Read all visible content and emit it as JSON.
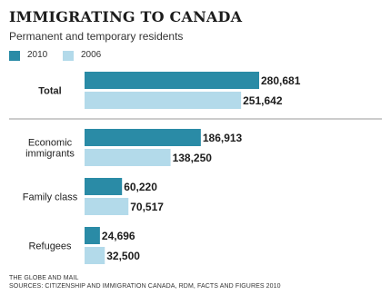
{
  "header": {
    "title": "IMMIGRATING TO CANADA",
    "subtitle": "Permanent and temporary residents"
  },
  "colors": {
    "series_2010": "#2a8ba6",
    "series_2006": "#b3daea",
    "divider": "#999999",
    "text": "#1c1c1c"
  },
  "chart_data": {
    "type": "bar",
    "orientation": "horizontal",
    "title": "IMMIGRATING TO CANADA",
    "subtitle": "Permanent and temporary residents",
    "categories": [
      "Total",
      "Economic immigrants",
      "Family class",
      "Refugees"
    ],
    "category_lines": [
      [
        "Total"
      ],
      [
        "Economic",
        "immigrants"
      ],
      [
        "Family class"
      ],
      [
        "Refugees"
      ]
    ],
    "series": [
      {
        "name": "2010",
        "values": [
          280681,
          186913,
          60220,
          24696
        ],
        "labels": [
          "280,681",
          "186,913",
          "60,220",
          "24,696"
        ]
      },
      {
        "name": "2006",
        "values": [
          251642,
          138250,
          70517,
          32500
        ],
        "labels": [
          "251,642",
          "138,250",
          "70,517",
          "32,500"
        ]
      }
    ],
    "legend_position": "top-left",
    "grid": false,
    "xlim": [
      0,
      280681
    ]
  },
  "footer": {
    "credit": "THE GLOBE AND MAIL",
    "sources": "SOURCES: CITIZENSHIP AND IMMIGRATION CANADA, RDM, FACTS AND FIGURES 2010"
  }
}
